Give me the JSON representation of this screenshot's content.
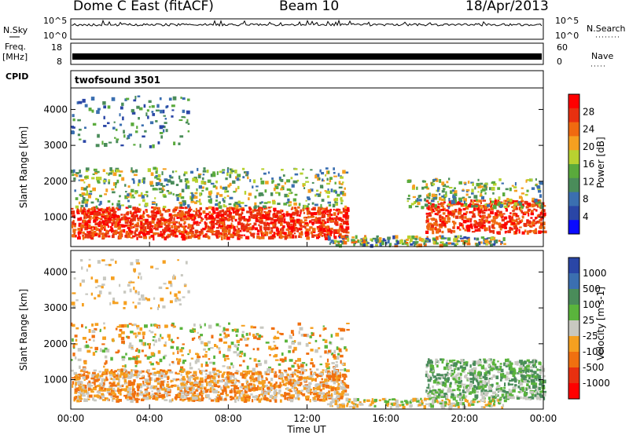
{
  "header": {
    "station": "Dome C East (fitACF)",
    "beam": "Beam 10",
    "date": "18/Apr/2013"
  },
  "top_panels": {
    "nsky_label": "N.Sky",
    "nsky_ticks": [
      "10^5",
      "10^0"
    ],
    "nsearch_label": "N.Search",
    "freq_label_1": "Freq.",
    "freq_label_2": "[MHz]",
    "freq_ticks": [
      "18",
      "8"
    ],
    "nave_label": "Nave",
    "nave_ticks": [
      "60",
      "0"
    ],
    "cpid_label": "CPID",
    "cpid_value": "twofsound 3501"
  },
  "colors": {
    "power_scale": [
      "#0a0aff",
      "#2a46a6",
      "#3b6fb0",
      "#4a8c5a",
      "#5aaa3c",
      "#b8d230",
      "#f5a020",
      "#f06a10",
      "#e83010",
      "#ff0000"
    ],
    "velocity_scale": [
      "#ff0000",
      "#e83010",
      "#f07010",
      "#f5a020",
      "#c8c8c0",
      "#5ab43c",
      "#4a8c5a",
      "#3b6fb0",
      "#2a46a6"
    ]
  },
  "chart_data": [
    {
      "type": "heatmap",
      "name": "power",
      "title": "",
      "xlabel": "Time UT",
      "ylabel": "Slant Range [km]",
      "x_ticks": [
        "00:00",
        "04:00",
        "08:00",
        "12:00",
        "16:00",
        "20:00",
        "00:00"
      ],
      "xlim_hours": [
        0,
        24
      ],
      "y_ticks": [
        1000,
        2000,
        3000,
        4000
      ],
      "ylim": [
        180,
        4600
      ],
      "colorbar_label": "Power [dB]",
      "colorbar_ticks": [
        "28",
        "24",
        "20",
        "16",
        "12",
        "8",
        "4"
      ],
      "colorbar_range": [
        0,
        30
      ]
    },
    {
      "type": "heatmap",
      "name": "velocity",
      "title": "",
      "xlabel": "Time UT",
      "ylabel": "Slant Range [km]",
      "x_ticks": [
        "00:00",
        "04:00",
        "08:00",
        "12:00",
        "16:00",
        "20:00",
        "00:00"
      ],
      "xlim_hours": [
        0,
        24
      ],
      "y_ticks": [
        1000,
        2000,
        3000,
        4000
      ],
      "ylim": [
        180,
        4600
      ],
      "colorbar_label": "Velocity [m s-1]",
      "colorbar_ticks": [
        "1000",
        "500",
        "100",
        "25",
        "-25",
        "-100",
        "-500",
        "-1000"
      ]
    }
  ]
}
